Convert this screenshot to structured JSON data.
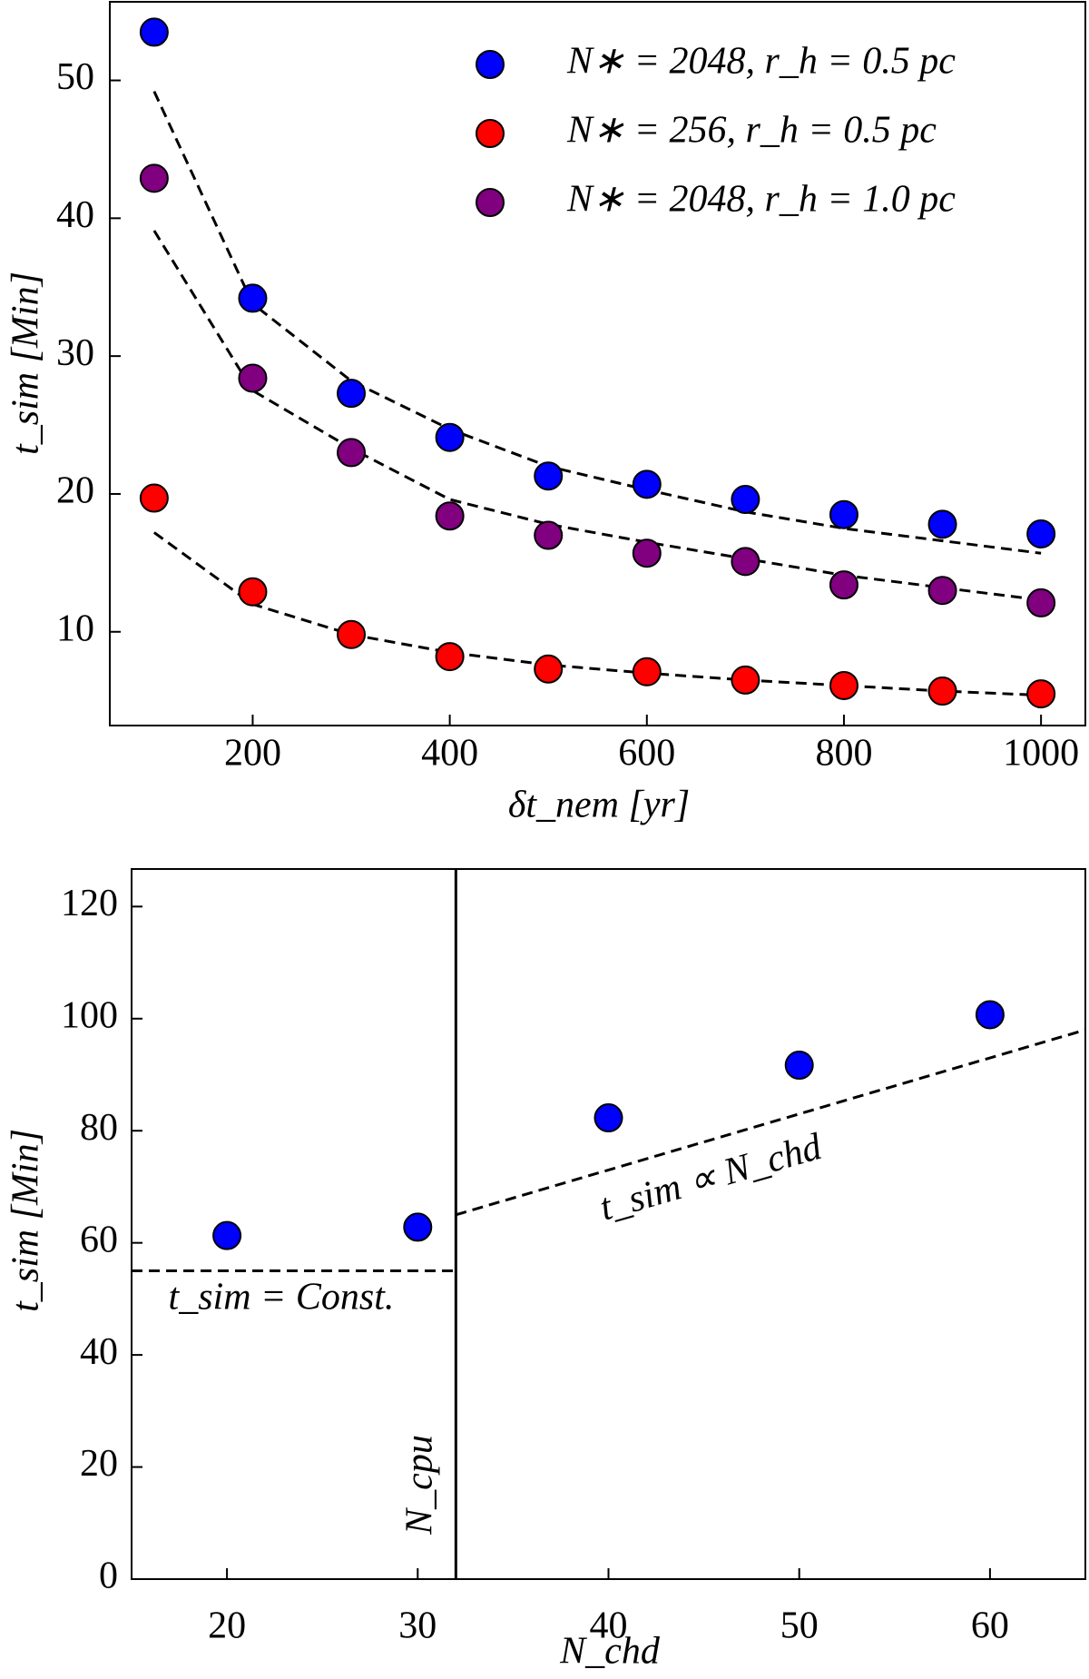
{
  "chart_data": [
    {
      "type": "scatter",
      "xlabel": "δt_nem [yr]",
      "ylabel": "t_sim [Min]",
      "x": [
        100,
        200,
        300,
        400,
        500,
        600,
        700,
        800,
        900,
        1000
      ],
      "series": [
        {
          "name": "N∗ = 2048, r_h = 0.5 pc",
          "color": "#0000ff",
          "values": [
            53.5,
            34.2,
            27.3,
            24.1,
            21.3,
            20.7,
            19.6,
            18.5,
            17.8,
            17.1
          ]
        },
        {
          "name": "N∗ = 256, r_h = 0.5 pc",
          "color": "#ff0000",
          "values": [
            19.7,
            12.9,
            9.8,
            8.2,
            7.3,
            7.1,
            6.5,
            6.1,
            5.7,
            5.5
          ]
        },
        {
          "name": "N∗ = 2048, r_h = 1.0 pc",
          "color": "#800080",
          "values": [
            42.9,
            28.4,
            23.0,
            18.4,
            17.0,
            15.7,
            15.1,
            13.4,
            13.0,
            12.1
          ]
        }
      ],
      "fits": [
        {
          "values": [
            49.2,
            33.8,
            28.2,
            24.7,
            22.0,
            20.3,
            18.7,
            17.5,
            16.6,
            15.7
          ]
        },
        {
          "values": [
            17.2,
            12.0,
            9.8,
            8.5,
            7.6,
            7.0,
            6.5,
            6.1,
            5.7,
            5.4
          ]
        },
        {
          "values": [
            39.1,
            27.5,
            23.3,
            19.6,
            17.8,
            16.5,
            15.3,
            14.1,
            13.2,
            12.3
          ]
        }
      ],
      "xlim": [
        55,
        1045
      ],
      "ylim": [
        3.2,
        55.7
      ],
      "xticks": [
        200,
        400,
        600,
        800,
        1000
      ],
      "yticks": [
        10,
        20,
        30,
        40,
        50
      ],
      "legend": "upper right"
    },
    {
      "type": "scatter",
      "xlabel": "N_chd",
      "ylabel": "t_sim [Min]",
      "x": [
        20,
        30,
        40,
        50,
        60
      ],
      "series": [
        {
          "color": "#0000ff",
          "values": [
            61.3,
            62.8,
            82.3,
            91.7,
            100.7
          ]
        }
      ],
      "lines": [
        {
          "x": [
            32,
            32
          ],
          "values": [
            0,
            126.7
          ],
          "dashed": false
        },
        {
          "x": [
            15,
            32
          ],
          "values": [
            55,
            55
          ],
          "dashed": true
        },
        {
          "x": [
            32,
            65
          ],
          "values": [
            65,
            98
          ],
          "dashed": true
        }
      ],
      "annotations": [
        "t_sim = Const.",
        "t_sim ∝ N_chd",
        "N_cpu"
      ],
      "xlim": [
        15,
        65
      ],
      "ylim": [
        0,
        126.7
      ],
      "xticks": [
        20,
        30,
        40,
        50,
        60
      ],
      "yticks": [
        0,
        20,
        40,
        60,
        80,
        100,
        120
      ]
    }
  ]
}
